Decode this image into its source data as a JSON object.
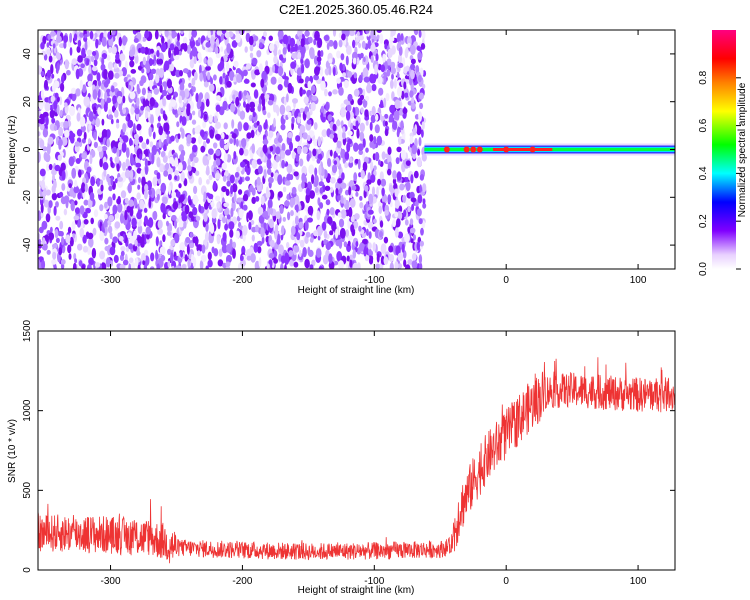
{
  "chart_data": [
    {
      "type": "heatmap",
      "title": "C2E1.2025.360.05.46.R24",
      "xlabel": "Height of straight line (km)",
      "ylabel": "Frequency (Hz)",
      "xlim": [
        -355,
        128
      ],
      "ylim": [
        -50,
        50
      ],
      "x_ticks": [
        "-300",
        "-200",
        "-100",
        "0",
        "100"
      ],
      "y_ticks": [
        "-40",
        "-20",
        "0",
        "20",
        "40"
      ],
      "noise_region_x": [
        -355,
        -62
      ],
      "tone_region_x": [
        -62,
        128
      ],
      "tone_frequency": 0,
      "tone_peak_x": [
        -45,
        -30,
        -25,
        -20,
        0,
        20
      ],
      "colorbar": {
        "label": "Normalized spectral amplitude",
        "range": [
          0,
          1
        ],
        "ticks": [
          "0.0",
          "0.2",
          "0.4",
          "0.6",
          "0.8"
        ],
        "colors": [
          "#ffffff",
          "#e0c0ff",
          "#8000ff",
          "#0000ff",
          "#00ffff",
          "#00ff00",
          "#ffff00",
          "#ff8000",
          "#ff0000",
          "#ff0080"
        ]
      }
    },
    {
      "type": "line",
      "xlabel": "Height of straight line (km)",
      "ylabel": "SNR (10 * v/v)",
      "xlim": [
        -355,
        128
      ],
      "ylim": [
        0,
        1500
      ],
      "x_ticks": [
        "-300",
        "-200",
        "-100",
        "0",
        "100"
      ],
      "y_ticks": [
        "0",
        "500",
        "1000",
        "1500"
      ],
      "color": "#ee3333",
      "series_points": [
        {
          "x": -355,
          "y": 230
        },
        {
          "x": -330,
          "y": 230
        },
        {
          "x": -300,
          "y": 220
        },
        {
          "x": -270,
          "y": 200
        },
        {
          "x": -260,
          "y": 180
        },
        {
          "x": -250,
          "y": 140
        },
        {
          "x": -200,
          "y": 125
        },
        {
          "x": -150,
          "y": 115
        },
        {
          "x": -100,
          "y": 120
        },
        {
          "x": -50,
          "y": 130
        },
        {
          "x": -42,
          "y": 150
        },
        {
          "x": -35,
          "y": 380
        },
        {
          "x": -25,
          "y": 550
        },
        {
          "x": -15,
          "y": 700
        },
        {
          "x": 0,
          "y": 850
        },
        {
          "x": 15,
          "y": 1000
        },
        {
          "x": 30,
          "y": 1120
        },
        {
          "x": 50,
          "y": 1130
        },
        {
          "x": 80,
          "y": 1110
        },
        {
          "x": 100,
          "y": 1100
        },
        {
          "x": 128,
          "y": 1100
        }
      ]
    }
  ]
}
